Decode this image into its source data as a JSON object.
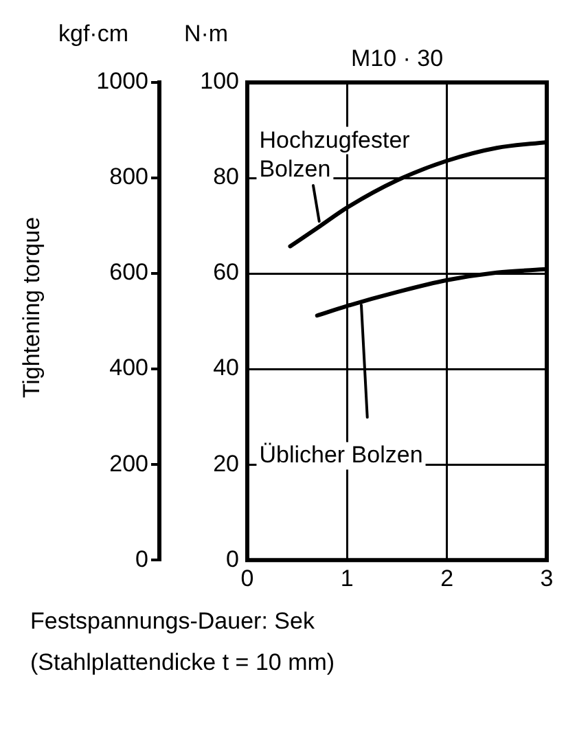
{
  "chart_data": {
    "type": "line",
    "title": "M10 · 30",
    "xlabel": "Festspannungs-Dauer: Sek",
    "ylabel": "N·m",
    "y2label": "kgf·cm",
    "annotations": [
      "Tightening torque",
      "(Stahlplattendicke t = 10 mm)"
    ],
    "x": [
      0.43,
      0.7,
      1,
      1.5,
      2,
      2.5,
      3
    ],
    "series": [
      {
        "name": "Hochzugfester Bolzen",
        "color": "#000000",
        "values": [
          65.7,
          69.5,
          73.8,
          79.5,
          83.6,
          86.3,
          87.5
        ]
      },
      {
        "name": "Üblicher Bolzen",
        "color": "#000000",
        "values": [
          null,
          51.2,
          53.2,
          56.1,
          58.6,
          60.2,
          60.9
        ]
      }
    ],
    "xlim": [
      0,
      3
    ],
    "xticks": [
      0,
      1,
      2,
      3
    ],
    "ylim": [
      0,
      100
    ],
    "yticks": [
      0,
      20,
      40,
      60,
      80,
      100
    ],
    "y2lim": [
      0,
      1000
    ],
    "y2ticks": [
      0,
      200,
      400,
      600,
      800,
      1000
    ],
    "grid": true,
    "legend": false,
    "marker": "none",
    "line_style": "solid"
  }
}
